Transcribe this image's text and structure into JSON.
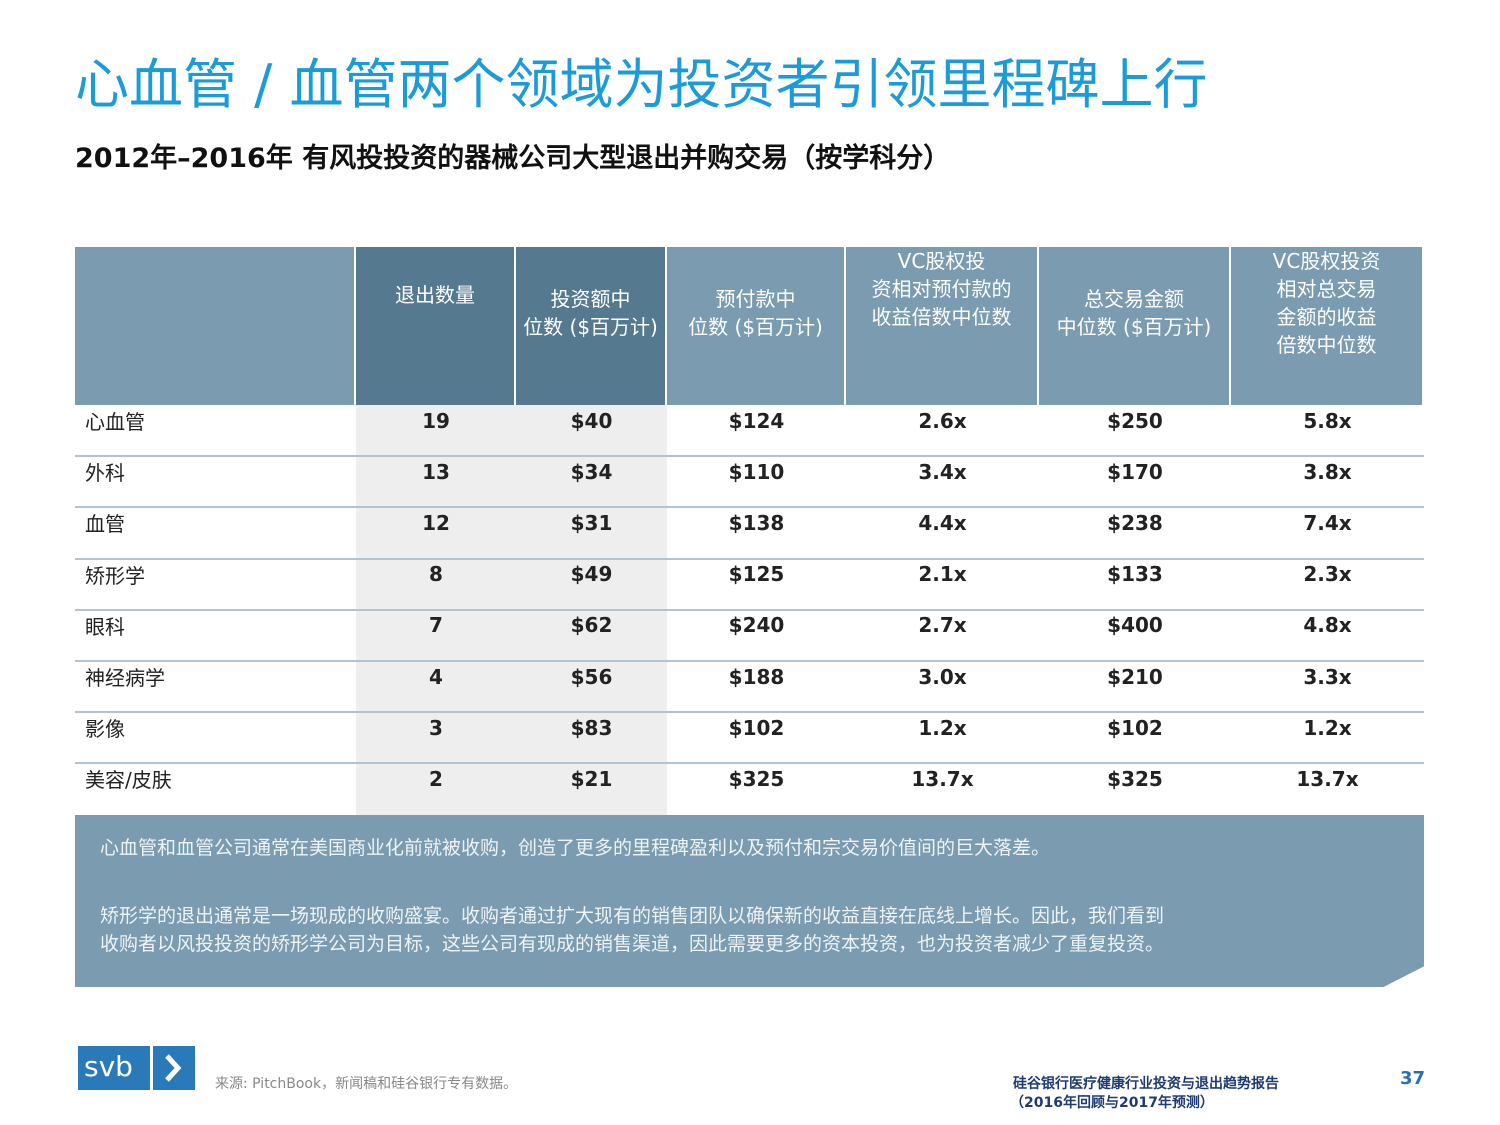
{
  "header": {
    "title": "心血管 / 血管两个领域为投资者引领里程碑上行",
    "subtitle": "2012年–2016年 有风投投资的器械公司大型退出并购交易（按学科分）"
  },
  "table": {
    "columns": [
      [
        "退出数量"
      ],
      [
        "投资额中",
        "位数 ($百万计)"
      ],
      [
        "预付款中",
        "位数 ($百万计)"
      ],
      [
        "VC股权投",
        "资相对预付款的",
        "收益倍数中位数"
      ],
      [
        "总交易金额",
        "中位数 ($百万计)"
      ],
      [
        "VC股权投资",
        "相对总交易",
        "金额的收益",
        "倍数中位数"
      ]
    ],
    "rows": [
      [
        "心血管",
        "19",
        "$40",
        "$124",
        "2.6x",
        "$250",
        "5.8x"
      ],
      [
        "外科",
        "13",
        "$34",
        "$110",
        "3.4x",
        "$170",
        "3.8x"
      ],
      [
        "血管",
        "12",
        "$31",
        "$138",
        "4.4x",
        "$238",
        "7.4x"
      ],
      [
        "矫形学",
        "8",
        "$49",
        "$125",
        "2.1x",
        "$133",
        "2.3x"
      ],
      [
        "眼科",
        "7",
        "$62",
        "$240",
        "2.7x",
        "$400",
        "4.8x"
      ],
      [
        "神经病学",
        "4",
        "$56",
        "$188",
        "3.0x",
        "$210",
        "3.3x"
      ],
      [
        "影像",
        "3",
        "$83",
        "$102",
        "1.2x",
        "$102",
        "1.2x"
      ],
      [
        "美容/皮肤",
        "2",
        "$21",
        "$325",
        "13.7x",
        "$325",
        "13.7x"
      ]
    ]
  },
  "summary": {
    "paragraphs": [
      [
        "心血管和血管公司通常在美国商业化前就被收购，创造了更多的里程碑盈利以及预付和宗交易价值间的巨大落差。"
      ],
      [
        "矫形学的退出通常是一场现成的收购盛宴。收购者通过扩大现有的销售团队以确保新的收益直接在底线上增长。因此，我们看到",
        "收购者以风投投资的矫形学公司为目标，这些公司有现成的销售渠道，因此需要更多的资本投资，也为投资者减少了重复投资。"
      ]
    ]
  },
  "footer": {
    "logo": "svb",
    "source": "来源: PitchBook，新闻稿和硅谷银行专有数据。",
    "report": [
      "硅谷银行医疗健康行业投资与退出趋势报告",
      "（2016年回顾与2017年预测）"
    ],
    "page": "37"
  }
}
